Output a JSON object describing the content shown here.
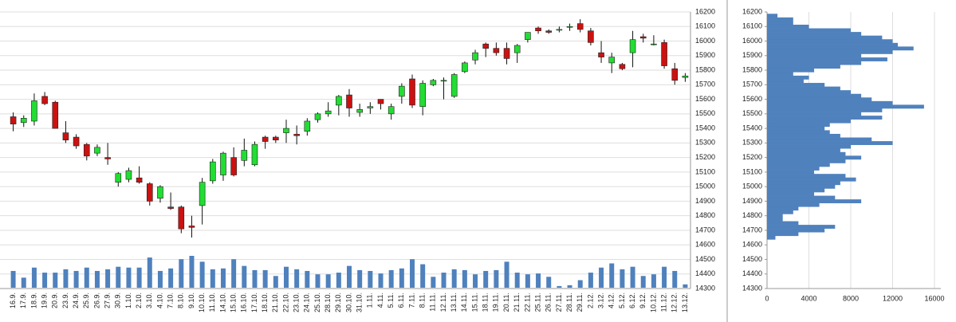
{
  "chart_data": [
    {
      "type": "candlestick",
      "categories": [
        "16.9.",
        "17.9.",
        "18.9.",
        "19.9.",
        "20.9.",
        "23.9.",
        "24.9.",
        "25.9.",
        "26.9.",
        "27.9.",
        "30.9.",
        "1.10.",
        "2.10.",
        "3.10.",
        "4.10.",
        "7.10.",
        "8.10.",
        "9.10.",
        "10.10.",
        "11.10.",
        "14.10.",
        "15.10.",
        "16.10.",
        "17.10.",
        "18.10.",
        "21.10.",
        "22.10.",
        "23.10.",
        "24.10.",
        "25.10.",
        "28.10.",
        "29.10.",
        "30.10.",
        "31.10.",
        "1.11.",
        "4.11.",
        "5.11.",
        "6.11.",
        "7.11.",
        "8.11.",
        "11.11.",
        "12.11.",
        "13.11.",
        "14.11.",
        "15.11.",
        "18.11.",
        "19.11.",
        "20.11.",
        "21.11.",
        "22.11.",
        "25.11.",
        "26.11.",
        "27.11.",
        "28.11.",
        "29.11.",
        "2.12.",
        "3.12.",
        "4.12.",
        "5.12.",
        "6.12.",
        "9.12.",
        "10.12.",
        "11.12.",
        "12.12.",
        "13.12."
      ],
      "open": [
        15480,
        15440,
        15450,
        15620,
        15580,
        15370,
        15340,
        15290,
        15230,
        15200,
        15030,
        15050,
        15060,
        15020,
        14920,
        14860,
        14860,
        14730,
        14870,
        15040,
        15080,
        15200,
        15180,
        15150,
        15340,
        15340,
        15370,
        15360,
        15380,
        15460,
        15500,
        15560,
        15630,
        15510,
        15540,
        15600,
        15500,
        15620,
        15740,
        15550,
        15700,
        15730,
        15620,
        15790,
        15870,
        15980,
        15950,
        15950,
        15920,
        16010,
        16090,
        16070,
        16080,
        16100,
        16120,
        16070,
        15920,
        15850,
        15840,
        15920,
        16030,
        15980,
        15990,
        15810,
        15750
      ],
      "high": [
        15510,
        15490,
        15640,
        15650,
        15590,
        15450,
        15360,
        15300,
        15290,
        15300,
        15100,
        15130,
        15140,
        15030,
        15010,
        14960,
        14870,
        14800,
        15060,
        15190,
        15240,
        15270,
        15330,
        15310,
        15350,
        15350,
        15460,
        15420,
        15470,
        15510,
        15580,
        15630,
        15670,
        15570,
        15580,
        15600,
        15570,
        15710,
        15770,
        15730,
        15740,
        15750,
        15780,
        15860,
        15940,
        15990,
        15990,
        15990,
        15980,
        16060,
        16100,
        16080,
        16100,
        16120,
        16150,
        16090,
        16000,
        15920,
        15850,
        16070,
        16050,
        16040,
        16010,
        15850,
        15780
      ],
      "low": [
        15380,
        15410,
        15420,
        15560,
        15400,
        15300,
        15260,
        15180,
        15210,
        15150,
        15000,
        15030,
        15020,
        14870,
        14890,
        14840,
        14680,
        14650,
        14740,
        15020,
        15040,
        15070,
        15140,
        15140,
        15260,
        15300,
        15300,
        15290,
        15350,
        15440,
        15480,
        15490,
        15480,
        15480,
        15500,
        15530,
        15460,
        15570,
        15540,
        15490,
        15690,
        15600,
        15610,
        15780,
        15840,
        15890,
        15900,
        15840,
        15850,
        15990,
        16050,
        16050,
        16060,
        16070,
        16060,
        15970,
        15850,
        15780,
        15800,
        15820,
        15990,
        15970,
        15810,
        15700,
        15720
      ],
      "close": [
        15430,
        15470,
        15590,
        15570,
        15400,
        15320,
        15280,
        15210,
        15270,
        15190,
        15090,
        15110,
        15030,
        14900,
        15000,
        14850,
        14710,
        14720,
        15030,
        15170,
        15230,
        15080,
        15250,
        15290,
        15310,
        15320,
        15400,
        15350,
        15450,
        15500,
        15520,
        15620,
        15540,
        15530,
        15550,
        15570,
        15550,
        15690,
        15560,
        15710,
        15730,
        15730,
        15770,
        15850,
        15920,
        15950,
        15920,
        15880,
        15970,
        16060,
        16070,
        16060,
        16080,
        16100,
        16080,
        15990,
        15890,
        15890,
        15810,
        16010,
        16020,
        15980,
        15830,
        15730,
        15760
      ],
      "volume": [
        20,
        12,
        24,
        18,
        18,
        22,
        20,
        24,
        20,
        22,
        25,
        24,
        24,
        36,
        20,
        23,
        34,
        38,
        31,
        22,
        23,
        34,
        26,
        21,
        21,
        14,
        25,
        22,
        20,
        16,
        16,
        18,
        26,
        21,
        20,
        17,
        21,
        23,
        34,
        28,
        13,
        18,
        22,
        21,
        16,
        20,
        21,
        31,
        18,
        16,
        17,
        13,
        2,
        3,
        9,
        18,
        24,
        29,
        22,
        25,
        14,
        16,
        25,
        20,
        4
      ],
      "ylim": [
        14300,
        16200
      ],
      "yticks": [
        14300,
        14400,
        14500,
        14600,
        14700,
        14800,
        14900,
        15000,
        15100,
        15200,
        15300,
        15400,
        15500,
        15600,
        15700,
        15800,
        15900,
        16000,
        16100,
        16200
      ],
      "up_color": "#22dd33",
      "down_color": "#cc1111",
      "volume_color": "#4f81bd",
      "grid": true
    },
    {
      "type": "barh",
      "levels": [
        16175,
        16150,
        16125,
        16100,
        16075,
        16050,
        16025,
        16000,
        15975,
        15950,
        15925,
        15900,
        15875,
        15850,
        15825,
        15800,
        15775,
        15750,
        15725,
        15700,
        15675,
        15650,
        15625,
        15600,
        15575,
        15550,
        15525,
        15500,
        15475,
        15450,
        15425,
        15400,
        15375,
        15350,
        15325,
        15300,
        15275,
        15250,
        15225,
        15200,
        15175,
        15150,
        15125,
        15100,
        15075,
        15050,
        15025,
        15000,
        14975,
        14950,
        14925,
        14900,
        14875,
        14850,
        14825,
        14800,
        14775,
        14750,
        14725,
        14700,
        14675,
        14650
      ],
      "values": [
        1000,
        2500,
        2500,
        4000,
        8000,
        9000,
        11000,
        12000,
        12500,
        14000,
        12000,
        9000,
        11500,
        9000,
        7000,
        4500,
        2500,
        4000,
        3500,
        5500,
        7000,
        8000,
        9000,
        10000,
        12000,
        15000,
        11000,
        9000,
        11000,
        8000,
        6000,
        5500,
        6000,
        7000,
        10000,
        12000,
        8000,
        7000,
        7500,
        9000,
        7500,
        6000,
        5000,
        4500,
        7500,
        8500,
        7000,
        6500,
        5500,
        4500,
        6500,
        9000,
        5000,
        3000,
        2500,
        1500,
        1500,
        3000,
        6500,
        5500,
        3000,
        800
      ],
      "xlim": [
        0,
        16000
      ],
      "xticks": [
        0,
        4000,
        8000,
        12000,
        16000
      ],
      "ylim": [
        14300,
        16200
      ],
      "yticks": [
        14300,
        14400,
        14500,
        14600,
        14700,
        14800,
        14900,
        15000,
        15100,
        15200,
        15300,
        15400,
        15500,
        15600,
        15700,
        15800,
        15900,
        16000,
        16100,
        16200
      ],
      "color": "#4f81bd",
      "grid": true
    }
  ]
}
